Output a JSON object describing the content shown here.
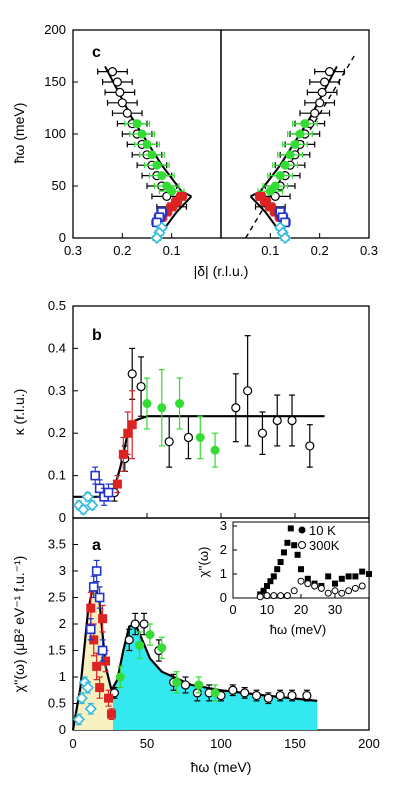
{
  "chart_data": [
    {
      "type": "scatter",
      "panel": "c",
      "panel_label": "c",
      "ylabel": "ħω (meV)",
      "xlabel": "|δ| (r.l.u.)",
      "ylim": [
        0,
        200
      ],
      "xlim_left": [
        0.3,
        0.0
      ],
      "xlim_right": [
        0.0,
        0.3
      ],
      "y_ticks": [
        "0",
        "50",
        "100",
        "150",
        "200"
      ],
      "x_ticks_left": [
        "0.3",
        "0.2",
        "0.1"
      ],
      "x_ticks_right": [
        "0.1",
        "0.2",
        "0.3"
      ],
      "colors": {
        "open": "#000000",
        "green": "#33dd33",
        "red": "#dd2222",
        "blue": "#2233cc",
        "cyan": "#33bbdd"
      },
      "series": [
        {
          "style": "open-circle",
          "x": [
            0.22,
            0.21,
            0.205,
            0.2,
            0.19,
            0.18,
            0.17,
            0.16,
            0.15,
            0.14,
            0.13,
            0.12,
            0.11,
            0.1
          ],
          "y": [
            160,
            150,
            140,
            130,
            120,
            110,
            100,
            90,
            80,
            70,
            60,
            50,
            40,
            30
          ],
          "xerr": 0.03
        },
        {
          "style": "green-filled",
          "x": [
            0.17,
            0.16,
            0.15,
            0.14,
            0.13,
            0.12,
            0.11,
            0.1
          ],
          "y": [
            110,
            100,
            90,
            80,
            70,
            60,
            50,
            45
          ],
          "xerr": 0.025
        },
        {
          "style": "red-filled",
          "x": [
            0.08,
            0.09,
            0.1,
            0.11,
            0.12
          ],
          "y": [
            40,
            35,
            30,
            25,
            20
          ],
          "xerr": 0.01
        },
        {
          "style": "blue-open-square",
          "x": [
            0.12,
            0.125,
            0.13
          ],
          "y": [
            25,
            20,
            15
          ],
          "xerr": 0.01
        },
        {
          "style": "cyan-open-diamond",
          "x": [
            0.12,
            0.125,
            0.13
          ],
          "y": [
            10,
            5,
            0
          ],
          "xerr": 0.008
        }
      ],
      "fit_left": {
        "x": [
          0.235,
          0.18,
          0.12,
          0.08,
          0.06
        ],
        "y": [
          165,
          115,
          70,
          45,
          40
        ]
      },
      "fit_lower": {
        "x": [
          0.06,
          0.09,
          0.11,
          0.125,
          0.13
        ],
        "y": [
          40,
          25,
          12,
          4,
          0
        ]
      },
      "dashed_right": {
        "x": [
          0.05,
          0.27
        ],
        "y": [
          0,
          175
        ]
      }
    },
    {
      "type": "scatter",
      "panel": "b",
      "panel_label": "b",
      "ylabel": "κ (r.l.u.)",
      "xlim": [
        0,
        200
      ],
      "ylim": [
        0,
        0.5
      ],
      "y_ticks": [
        "0",
        "0.1",
        "0.2",
        "0.3",
        "0.4",
        "0.5"
      ],
      "series": [
        {
          "style": "open-circle",
          "x": [
            28,
            35,
            40,
            46,
            65,
            78,
            110,
            118,
            128,
            138,
            148,
            160
          ],
          "y": [
            0.06,
            0.14,
            0.34,
            0.31,
            0.18,
            0.19,
            0.26,
            0.3,
            0.2,
            0.23,
            0.23,
            0.17
          ],
          "yerr": [
            0.02,
            0.03,
            0.06,
            0.07,
            0.06,
            0.05,
            0.08,
            0.13,
            0.05,
            0.06,
            0.06,
            0.05
          ]
        },
        {
          "style": "green-filled",
          "x": [
            50,
            60,
            72,
            86,
            96
          ],
          "y": [
            0.27,
            0.26,
            0.27,
            0.19,
            0.16
          ],
          "yerr": [
            0.06,
            0.09,
            0.06,
            0.05,
            0.04
          ]
        },
        {
          "style": "red-filled",
          "x": [
            30,
            34,
            37,
            40
          ],
          "y": [
            0.08,
            0.15,
            0.2,
            0.22
          ],
          "yerr": [
            0.02,
            0.04,
            0.05,
            0.08
          ]
        },
        {
          "style": "blue-open-square",
          "x": [
            15,
            18,
            21,
            24
          ],
          "y": [
            0.1,
            0.07,
            0.05,
            0.06
          ],
          "yerr": [
            0.02,
            0.02,
            0.02,
            0.02
          ]
        },
        {
          "style": "cyan-open-diamond",
          "x": [
            4,
            7,
            10,
            13
          ],
          "y": [
            0.03,
            0.02,
            0.05,
            0.03
          ],
          "yerr": [
            0.01,
            0.01,
            0.01,
            0.01
          ]
        }
      ],
      "fit": {
        "x": [
          0,
          20,
          27,
          32,
          37,
          42,
          50,
          60,
          170
        ],
        "y": [
          0.05,
          0.05,
          0.06,
          0.12,
          0.2,
          0.23,
          0.24,
          0.24,
          0.24
        ]
      }
    },
    {
      "type": "scatter",
      "panel": "a",
      "panel_label": "a",
      "ylabel": "χ''(ω) (μB² eV⁻¹ f.u.⁻¹)",
      "xlabel": "ħω (meV)",
      "xlim": [
        0,
        200
      ],
      "ylim": [
        0,
        4
      ],
      "x_ticks": [
        "0",
        "50",
        "100",
        "150",
        "200"
      ],
      "y_ticks": [
        "0",
        "0.5",
        "1",
        "1.5",
        "2",
        "2.5",
        "3",
        "3.5"
      ],
      "fill_colors": {
        "low": "#f7f0c0",
        "high": "#33e8ee"
      },
      "series": [
        {
          "style": "open-circle",
          "x": [
            28,
            38,
            42,
            48,
            58,
            68,
            76,
            84,
            92,
            100,
            108,
            116,
            124,
            132,
            140,
            148,
            158
          ],
          "y": [
            0.7,
            1.7,
            2.0,
            2.0,
            1.5,
            0.9,
            0.85,
            0.7,
            0.7,
            0.65,
            0.75,
            0.7,
            0.65,
            0.6,
            0.65,
            0.65,
            0.65
          ],
          "yerr": [
            0.1,
            0.2,
            0.2,
            0.2,
            0.2,
            0.15,
            0.15,
            0.15,
            0.15,
            0.1,
            0.1,
            0.1,
            0.1,
            0.1,
            0.1,
            0.1,
            0.1
          ]
        },
        {
          "style": "green-filled",
          "x": [
            32,
            45,
            52,
            60,
            70,
            85,
            96
          ],
          "y": [
            1.0,
            1.6,
            1.8,
            1.55,
            0.9,
            0.85,
            0.7
          ],
          "yerr": [
            0.2,
            0.25,
            0.2,
            0.2,
            0.2,
            0.15,
            0.15
          ]
        },
        {
          "style": "red-filled",
          "x": [
            12,
            14,
            16,
            18,
            20,
            22,
            24,
            26
          ],
          "y": [
            2.3,
            1.7,
            1.2,
            0.8,
            2.1,
            1.3,
            0.6,
            0.3
          ],
          "yerr": [
            0.3,
            0.3,
            0.25,
            0.2,
            0.25,
            0.2,
            0.15,
            0.1
          ]
        },
        {
          "style": "blue-open-square",
          "x": [
            12,
            14,
            16,
            18,
            20
          ],
          "y": [
            1.9,
            2.7,
            3.0,
            2.5,
            1.5
          ],
          "yerr": [
            0.2,
            0.2,
            0.2,
            0.2,
            0.2
          ]
        },
        {
          "style": "cyan-open-diamond",
          "x": [
            4,
            6,
            8,
            10,
            12
          ],
          "y": [
            0.2,
            0.6,
            0.9,
            0.8,
            0.4
          ],
          "yerr": [
            0.1,
            0.1,
            0.1,
            0.1,
            0.1
          ]
        }
      ],
      "fit": {
        "x": [
          0,
          5,
          10,
          14,
          18,
          22,
          26,
          30,
          34,
          38,
          42,
          46,
          52,
          60,
          80,
          100,
          130,
          165
        ],
        "y": [
          0,
          0.8,
          2.2,
          2.8,
          2.4,
          1.2,
          0.75,
          0.95,
          1.5,
          1.95,
          2.0,
          1.75,
          1.35,
          1.1,
          0.85,
          0.75,
          0.65,
          0.55
        ]
      },
      "inset": {
        "ylabel": "χ''(ω)",
        "xlabel": "ħω (meV)",
        "xlim": [
          0,
          40
        ],
        "ylim": [
          0,
          3
        ],
        "x_ticks": [
          "0",
          "10",
          "20",
          "30"
        ],
        "y_ticks": [
          "0",
          "1",
          "2",
          "3"
        ],
        "legend": [
          {
            "style": "filled-circle",
            "label": "10 K"
          },
          {
            "style": "open-circle",
            "label": "300K"
          }
        ],
        "series_10K": {
          "x": [
            8,
            9,
            10,
            11,
            12,
            13,
            14,
            15,
            16,
            17,
            18,
            19,
            20,
            22,
            24,
            26,
            28,
            30,
            32,
            34,
            36,
            38,
            40
          ],
          "y": [
            0.15,
            0.3,
            0.5,
            0.7,
            0.9,
            1.2,
            1.5,
            1.9,
            2.3,
            2.9,
            2.2,
            1.8,
            1.2,
            0.8,
            0.6,
            0.5,
            0.9,
            0.6,
            0.8,
            0.9,
            0.9,
            1.1,
            1.0
          ]
        },
        "series_300K": {
          "x": [
            8,
            10,
            12,
            14,
            16,
            18,
            20,
            22,
            24,
            26,
            28,
            30,
            32,
            34,
            36,
            38
          ],
          "y": [
            0.05,
            0.1,
            0.1,
            0.1,
            0.1,
            0.3,
            0.7,
            0.6,
            0.5,
            0.4,
            0.2,
            0.3,
            0.2,
            0.3,
            0.4,
            0.5
          ]
        }
      }
    }
  ]
}
